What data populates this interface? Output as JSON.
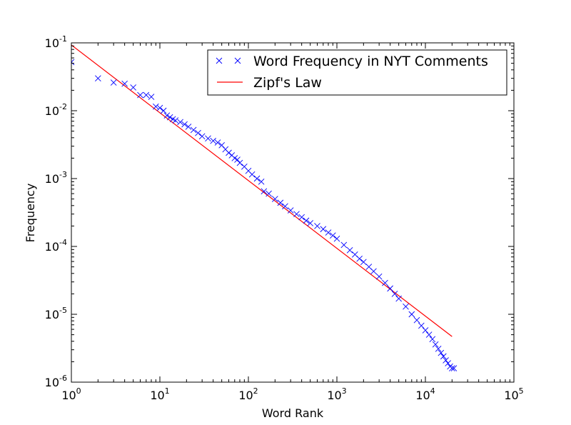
{
  "chart_data": {
    "type": "scatter",
    "xlabel": "Word Rank",
    "ylabel": "Frequency",
    "xscale": "log",
    "yscale": "log",
    "xlim": [
      1,
      100000
    ],
    "ylim": [
      1e-06,
      0.1
    ],
    "x_tick_labels": [
      {
        "base": "10",
        "exp": "0"
      },
      {
        "base": "10",
        "exp": "1"
      },
      {
        "base": "10",
        "exp": "2"
      },
      {
        "base": "10",
        "exp": "3"
      },
      {
        "base": "10",
        "exp": "4"
      },
      {
        "base": "10",
        "exp": "5"
      }
    ],
    "y_tick_labels": [
      {
        "base": "10",
        "exp": "-1"
      },
      {
        "base": "10",
        "exp": "-2"
      },
      {
        "base": "10",
        "exp": "-3"
      },
      {
        "base": "10",
        "exp": "-4"
      },
      {
        "base": "10",
        "exp": "-5"
      },
      {
        "base": "10",
        "exp": "-6"
      }
    ],
    "grid": false,
    "legend_position": "top-right",
    "colors": {
      "scatter": "#0000ff",
      "line": "#ff0000"
    },
    "series": [
      {
        "name": "Word Frequency in NYT Comments",
        "kind": "scatter",
        "marker": "x",
        "points": [
          [
            1,
            0.052
          ],
          [
            2,
            0.03
          ],
          [
            3,
            0.026
          ],
          [
            4,
            0.025
          ],
          [
            5,
            0.022
          ],
          [
            6,
            0.017
          ],
          [
            7,
            0.017
          ],
          [
            8,
            0.016
          ],
          [
            9,
            0.0115
          ],
          [
            10,
            0.011
          ],
          [
            11,
            0.01
          ],
          [
            12,
            0.0085
          ],
          [
            13,
            0.008
          ],
          [
            14,
            0.0075
          ],
          [
            15,
            0.0072
          ],
          [
            17,
            0.0068
          ],
          [
            19,
            0.0063
          ],
          [
            21,
            0.0058
          ],
          [
            24,
            0.0052
          ],
          [
            27,
            0.0047
          ],
          [
            30,
            0.0042
          ],
          [
            35,
            0.0039
          ],
          [
            40,
            0.0036
          ],
          [
            45,
            0.0034
          ],
          [
            50,
            0.0031
          ],
          [
            55,
            0.0027
          ],
          [
            60,
            0.0024
          ],
          [
            65,
            0.0022
          ],
          [
            70,
            0.002
          ],
          [
            75,
            0.0019
          ],
          [
            80,
            0.0017
          ],
          [
            90,
            0.0015
          ],
          [
            100,
            0.0013
          ],
          [
            110,
            0.00115
          ],
          [
            125,
            0.001
          ],
          [
            140,
            0.0009
          ],
          [
            150,
            0.00065
          ],
          [
            170,
            0.0006
          ],
          [
            200,
            0.0005
          ],
          [
            230,
            0.00044
          ],
          [
            260,
            0.00039
          ],
          [
            300,
            0.00034
          ],
          [
            350,
            0.0003
          ],
          [
            400,
            0.00027
          ],
          [
            450,
            0.00024
          ],
          [
            500,
            0.00022
          ],
          [
            600,
            0.0002
          ],
          [
            700,
            0.00018
          ],
          [
            800,
            0.00016
          ],
          [
            900,
            0.000145
          ],
          [
            1000,
            0.00013
          ],
          [
            1200,
            0.000105
          ],
          [
            1400,
            8.8e-05
          ],
          [
            1600,
            7.6e-05
          ],
          [
            1800,
            6.6e-05
          ],
          [
            2000,
            5.9e-05
          ],
          [
            2300,
            5e-05
          ],
          [
            2600,
            4.3e-05
          ],
          [
            3000,
            3.6e-05
          ],
          [
            3500,
            2.9e-05
          ],
          [
            4000,
            2.4e-05
          ],
          [
            4500,
            2e-05
          ],
          [
            5000,
            1.7e-05
          ],
          [
            6000,
            1.3e-05
          ],
          [
            7000,
            1e-05
          ],
          [
            8000,
            8.2e-06
          ],
          [
            9000,
            6.8e-06
          ],
          [
            10000,
            5.8e-06
          ],
          [
            11000,
            5e-06
          ],
          [
            12000,
            4.3e-06
          ],
          [
            13000,
            3.6e-06
          ],
          [
            14000,
            3.1e-06
          ],
          [
            15000,
            2.7e-06
          ],
          [
            16000,
            2.4e-06
          ],
          [
            17000,
            2.1e-06
          ],
          [
            18000,
            1.9e-06
          ],
          [
            19000,
            1.7e-06
          ],
          [
            20000,
            1.6e-06
          ],
          [
            21000,
            1.6e-06
          ]
        ]
      },
      {
        "name": "Zipf's Law",
        "kind": "line",
        "points": [
          [
            1,
            0.093
          ],
          [
            20000,
            4.7e-06
          ]
        ]
      }
    ]
  }
}
